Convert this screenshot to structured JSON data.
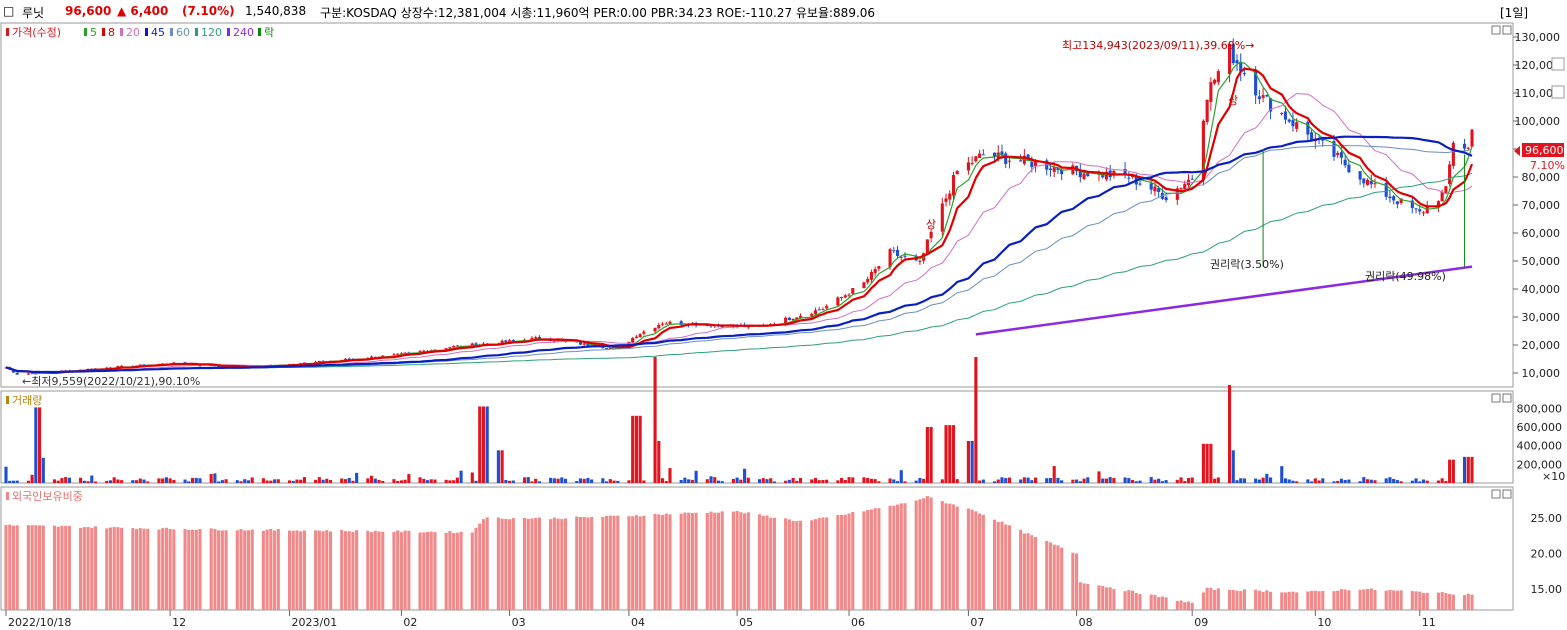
{
  "header": {
    "checkbox": "□",
    "name": "루닛",
    "price": "96,600",
    "change": "▲ 6,400",
    "change_pct": "(7.10%)",
    "volume": "1,540,838",
    "info": "구분:KOSDAQ 상장수:12,381,004 시총:11,960억 PER:0.00 PBR:34.23 ROE:-110.27 유보율:889.06",
    "period": "[1일]"
  },
  "colors": {
    "up": "#e0141e",
    "down": "#1e4fd0",
    "ma5": "#2ca02c",
    "ma8": "#e00000",
    "ma20": "#d070c0",
    "ma45": "#0a1fbf",
    "ma60": "#6a8fc0",
    "ma120": "#2e9e7e",
    "ma240": "#8a2be2",
    "rak": "#0a8a0a",
    "foreign": "#f08a8a"
  },
  "legend": {
    "price": "가격(수정)",
    "ma5": "5",
    "ma8": "8",
    "ma20": "20",
    "ma45": "45",
    "ma60": "60",
    "ma120": "120",
    "ma240": "240",
    "rak": "락"
  },
  "annotations": {
    "high": "최고134,943(2023/09/11),39.69%→",
    "low": "←최저9,559(2022/10/21),90.10%",
    "rights1": "권리락(3.50%)",
    "rights2": "권리락(49.98%)",
    "sang1": "상",
    "sang2": "상",
    "last_price": "96,600",
    "last_pct": "7.10%"
  },
  "price_axis": [
    "130,000",
    "120,000",
    "110,000",
    "100,000",
    "90,000",
    "80,000",
    "70,000",
    "60,000",
    "50,000",
    "40,000",
    "30,000",
    "20,000",
    "10,000"
  ],
  "volume_panel": {
    "title": "거래량",
    "ticks": [
      "800,000",
      "600,000",
      "400,000",
      "200,000"
    ],
    "unit": "×10"
  },
  "foreign_panel": {
    "title": "외국인보유비중",
    "ticks": [
      "25.00",
      "20.00",
      "15.00"
    ]
  },
  "x_labels": [
    "2022/10/18",
    "12",
    "2023/01",
    "02",
    "03",
    "04",
    "05",
    "06",
    "07",
    "08",
    "09",
    "10",
    "11"
  ],
  "chart_data": {
    "type": "candlestick",
    "x_range": [
      "2022/10/18",
      "2023/11/15"
    ],
    "price_ylim": [
      5000,
      135000
    ],
    "price_anchors": [
      [
        "2022-10-18",
        12000
      ],
      [
        "2022-10-21",
        9559
      ],
      [
        "2022-11-15",
        12000
      ],
      [
        "2022-12-01",
        13500
      ],
      [
        "2022-12-20",
        12000
      ],
      [
        "2023-01-10",
        14000
      ],
      [
        "2023-01-31",
        16500
      ],
      [
        "2023-02-15",
        19500
      ],
      [
        "2023-02-28",
        21000
      ],
      [
        "2023-03-10",
        22500
      ],
      [
        "2023-03-31",
        18500
      ],
      [
        "2023-04-05",
        23500
      ],
      [
        "2023-04-12",
        28000
      ],
      [
        "2023-04-28",
        27000
      ],
      [
        "2023-05-08",
        26500
      ],
      [
        "2023-05-25",
        33000
      ],
      [
        "2023-06-05",
        42000
      ],
      [
        "2023-06-12",
        53000
      ],
      [
        "2023-06-20",
        49000
      ],
      [
        "2023-06-23",
        60000
      ],
      [
        "2023-06-30",
        82000
      ],
      [
        "2023-07-07",
        88000
      ],
      [
        "2023-07-20",
        85000
      ],
      [
        "2023-08-01",
        82000
      ],
      [
        "2023-08-15",
        80000
      ],
      [
        "2023-08-25",
        73000
      ],
      [
        "2023-09-01",
        80000
      ],
      [
        "2023-09-05",
        110000
      ],
      [
        "2023-09-11",
        125000
      ],
      [
        "2023-09-20",
        108000
      ],
      [
        "2023-10-05",
        92000
      ],
      [
        "2023-10-20",
        76000
      ],
      [
        "2023-11-01",
        67000
      ],
      [
        "2023-11-08",
        75000
      ],
      [
        "2023-11-10",
        93000
      ],
      [
        "2023-11-14",
        90200
      ],
      [
        "2023-11-15",
        96600
      ]
    ],
    "volume_ylim": [
      0,
      900000
    ],
    "volume_spikes": [
      [
        "2022-10-27",
        270000
      ],
      [
        "2023-02-23",
        820000
      ],
      [
        "2023-02-27",
        350000
      ],
      [
        "2023-04-05",
        720000
      ],
      [
        "2023-04-10",
        450000
      ],
      [
        "2023-06-23",
        600000
      ],
      [
        "2023-06-28",
        620000
      ],
      [
        "2023-07-04",
        450000
      ],
      [
        "2023-09-05",
        420000
      ],
      [
        "2023-09-11",
        350000
      ],
      [
        "2023-11-10",
        250000
      ],
      [
        "2023-11-14",
        280000
      ]
    ],
    "volume_base": 40000,
    "foreign_ylim": [
      12,
      28
    ],
    "foreign_anchors": [
      [
        "2022-10-18",
        24
      ],
      [
        "2022-12-01",
        23.5
      ],
      [
        "2023-02-20",
        23
      ],
      [
        "2023-02-23",
        25
      ],
      [
        "2023-03-15",
        25
      ],
      [
        "2023-04-01",
        25.3
      ],
      [
        "2023-05-01",
        26
      ],
      [
        "2023-05-20",
        24.5
      ],
      [
        "2023-06-15",
        27
      ],
      [
        "2023-06-22",
        28
      ],
      [
        "2023-07-05",
        26
      ],
      [
        "2023-07-20",
        22.5
      ],
      [
        "2023-08-01",
        20
      ],
      [
        "2023-08-02",
        16
      ],
      [
        "2023-09-01",
        13
      ],
      [
        "2023-09-05",
        15
      ],
      [
        "2023-10-01",
        14.5
      ],
      [
        "2023-10-15",
        15
      ],
      [
        "2023-11-15",
        14.2
      ]
    ],
    "ma240_range": [
      [
        "2023-07-05",
        23800
      ],
      [
        "2023-11-15",
        48000
      ]
    ],
    "rights_markers": [
      [
        "2023-09-20",
        90000,
        48000
      ],
      [
        "2023-11-13",
        88000,
        48000
      ]
    ]
  }
}
